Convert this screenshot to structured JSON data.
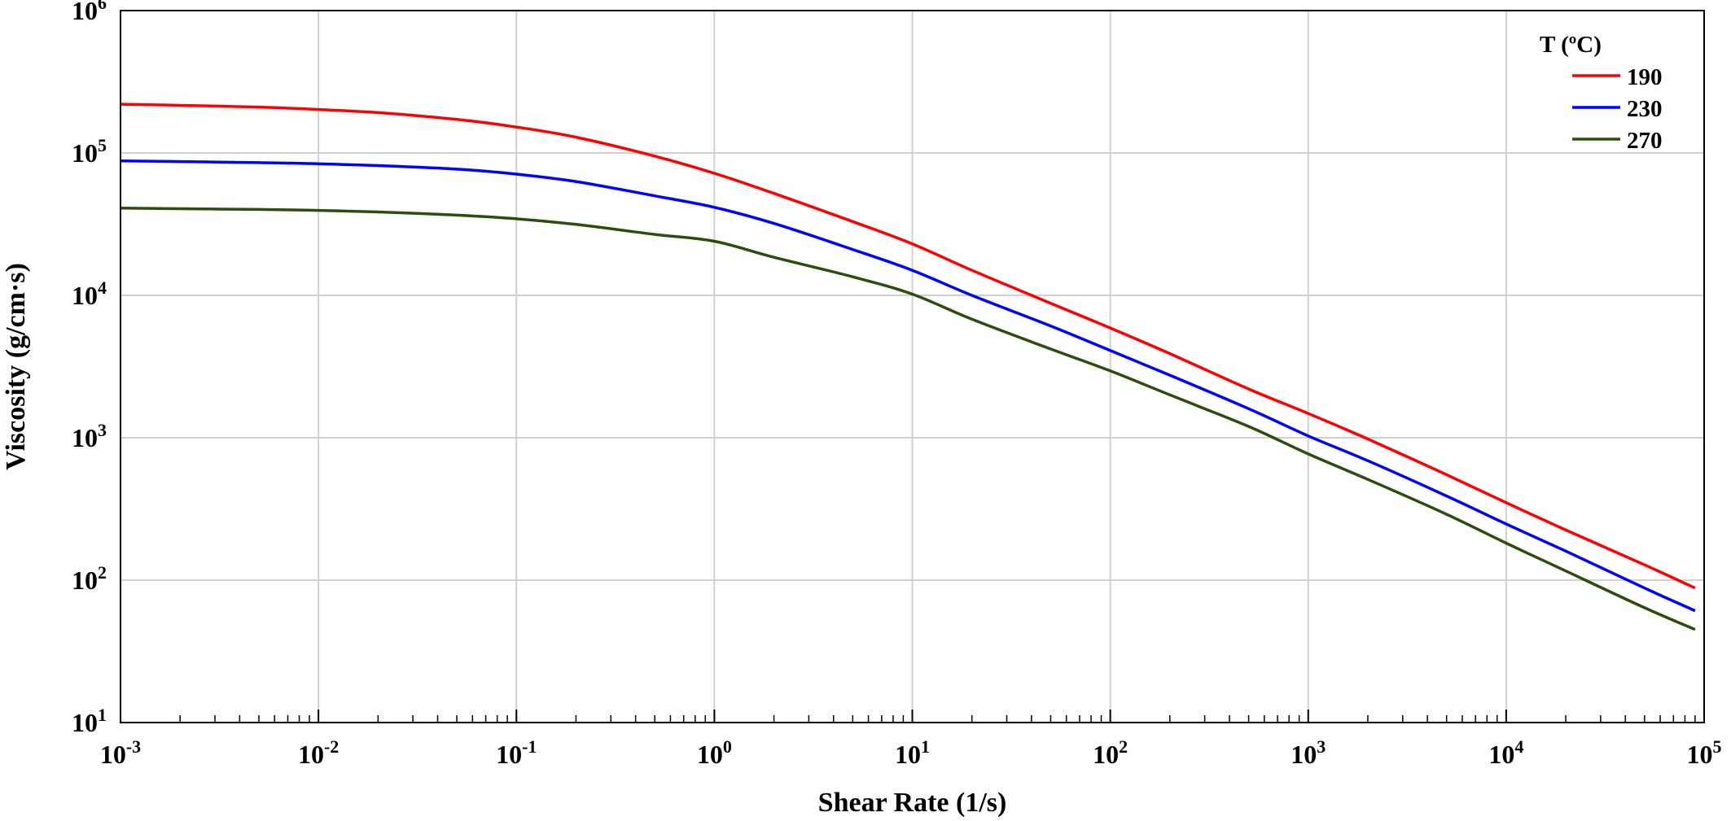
{
  "chart_data": {
    "type": "line",
    "xlabel": "Shear Rate (1/s)",
    "ylabel": "Viscosity (g/cm·s)",
    "xscale": "log",
    "yscale": "log",
    "xlim": [
      0.001,
      100000
    ],
    "ylim": [
      10,
      1000000
    ],
    "grid": true,
    "x_ticks": [
      {
        "base": "10",
        "exp": "-3",
        "value": 0.001
      },
      {
        "base": "10",
        "exp": "-2",
        "value": 0.01
      },
      {
        "base": "10",
        "exp": "-1",
        "value": 0.1
      },
      {
        "base": "10",
        "exp": "0",
        "value": 1
      },
      {
        "base": "10",
        "exp": "1",
        "value": 10
      },
      {
        "base": "10",
        "exp": "2",
        "value": 100
      },
      {
        "base": "10",
        "exp": "3",
        "value": 1000
      },
      {
        "base": "10",
        "exp": "4",
        "value": 10000
      },
      {
        "base": "10",
        "exp": "5",
        "value": 100000
      }
    ],
    "y_ticks": [
      {
        "base": "10",
        "exp": "1",
        "value": 10
      },
      {
        "base": "10",
        "exp": "2",
        "value": 100
      },
      {
        "base": "10",
        "exp": "3",
        "value": 1000
      },
      {
        "base": "10",
        "exp": "4",
        "value": 10000
      },
      {
        "base": "10",
        "exp": "5",
        "value": 100000
      },
      {
        "base": "10",
        "exp": "6",
        "value": 1000000
      }
    ],
    "legend": {
      "title": "T (ºC)",
      "position": "top-right"
    },
    "x": [
      0.001,
      0.002,
      0.005,
      0.01,
      0.02,
      0.05,
      0.1,
      0.2,
      0.5,
      1,
      2,
      5,
      10,
      20,
      50,
      100,
      200,
      500,
      1000,
      2000,
      5000,
      10000,
      20000,
      50000,
      90000
    ],
    "series": [
      {
        "name": "190",
        "color": "#ff0000",
        "values": [
          220000,
          216000,
          210000,
          202000,
          192000,
          172000,
          152000,
          129000,
          95000,
          72000,
          52000,
          33000,
          23000,
          15000,
          8800,
          5900,
          3900,
          2200,
          1480,
          980,
          550,
          350,
          225,
          128,
          88
        ]
      },
      {
        "name": "230",
        "color": "#0000ff",
        "values": [
          88000,
          87000,
          85500,
          84000,
          81500,
          77000,
          71000,
          63000,
          50000,
          41500,
          32000,
          21000,
          15000,
          10000,
          6100,
          4100,
          2750,
          1600,
          1030,
          690,
          390,
          248,
          160,
          88,
          61
        ]
      },
      {
        "name": "270",
        "color": "#2d4d0e",
        "values": [
          41000,
          40600,
          40100,
          39500,
          38500,
          36600,
          34500,
          31500,
          26800,
          24000,
          18500,
          13500,
          10200,
          6800,
          4200,
          2950,
          2000,
          1200,
          770,
          510,
          290,
          182,
          116,
          64,
          45
        ]
      }
    ]
  }
}
